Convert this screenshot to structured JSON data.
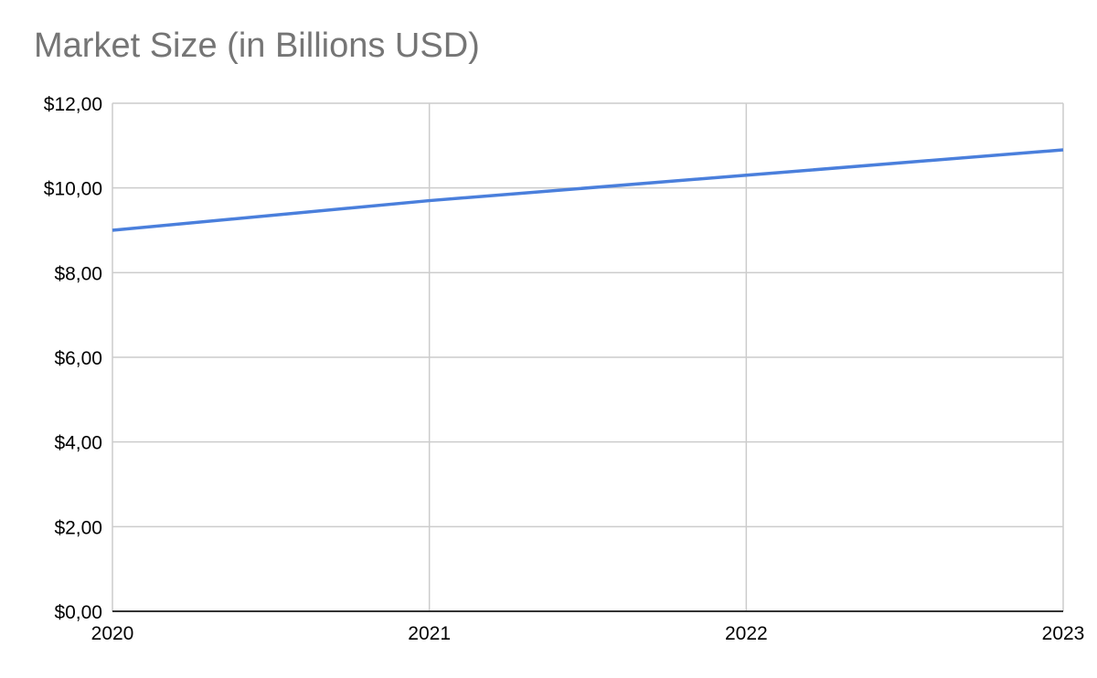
{
  "chart_data": {
    "type": "line",
    "title": "Market Size (in Billions USD)",
    "xlabel": "",
    "ylabel": "",
    "categories": [
      "2020",
      "2021",
      "2022",
      "2023"
    ],
    "series": [
      {
        "values": [
          9.0,
          9.7,
          10.3,
          10.9
        ]
      }
    ],
    "y_ticks": [
      {
        "value": 0,
        "label": "$0,00"
      },
      {
        "value": 2,
        "label": "$2,00"
      },
      {
        "value": 4,
        "label": "$4,00"
      },
      {
        "value": 6,
        "label": "$6,00"
      },
      {
        "value": 8,
        "label": "$8,00"
      },
      {
        "value": 10,
        "label": "$10,00"
      },
      {
        "value": 12,
        "label": "$12,00"
      }
    ],
    "ylim": [
      0,
      12
    ],
    "grid": true,
    "legend": "none",
    "colors": {
      "line": "#4a7fdc",
      "grid": "#cccccc",
      "axis": "#333333",
      "title": "#757575"
    }
  }
}
